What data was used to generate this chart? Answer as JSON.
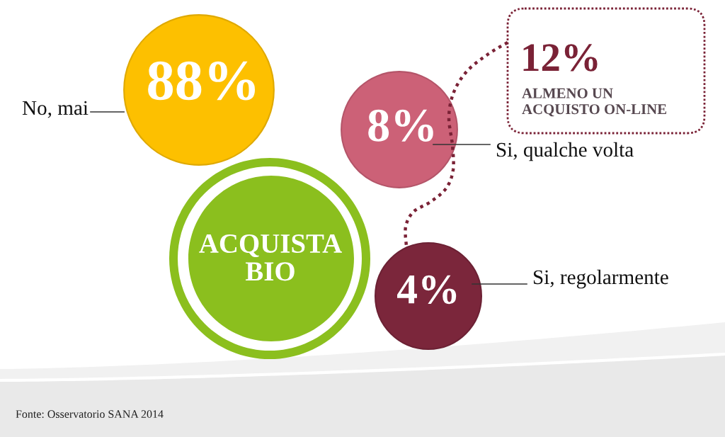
{
  "chart_data": {
    "type": "other",
    "title": "ACQUISTA\nBIO",
    "categories": [
      "No, mai",
      "Si, qualche volta",
      "Si, regolarmente"
    ],
    "values": [
      88,
      8,
      4
    ],
    "value_labels": [
      "88%",
      "8%",
      "4%"
    ],
    "colors": [
      "#fdc000",
      "#cc6177",
      "#7b263b"
    ],
    "annotations": [
      "12%",
      "ALMENO UN\nACQUISTO ON-LINE",
      "Fonte: Osservatorio SANA 2014"
    ]
  }
}
